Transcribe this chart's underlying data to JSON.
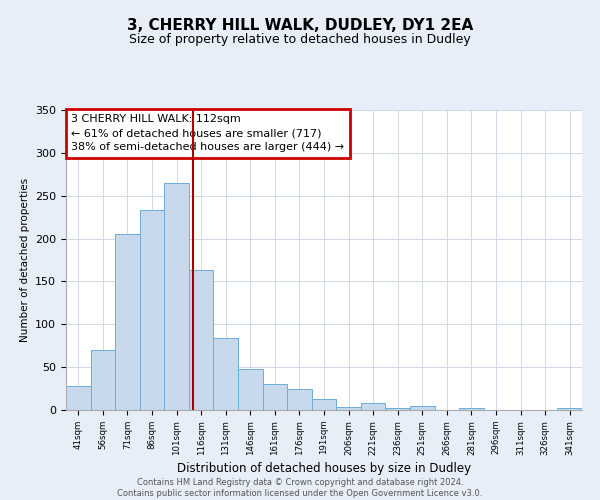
{
  "title": "3, CHERRY HILL WALK, DUDLEY, DY1 2EA",
  "subtitle": "Size of property relative to detached houses in Dudley",
  "xlabel": "Distribution of detached houses by size in Dudley",
  "ylabel": "Number of detached properties",
  "footer_line1": "Contains HM Land Registry data © Crown copyright and database right 2024.",
  "footer_line2": "Contains public sector information licensed under the Open Government Licence v3.0.",
  "bin_labels": [
    "41sqm",
    "56sqm",
    "71sqm",
    "86sqm",
    "101sqm",
    "116sqm",
    "131sqm",
    "146sqm",
    "161sqm",
    "176sqm",
    "191sqm",
    "206sqm",
    "221sqm",
    "236sqm",
    "251sqm",
    "266sqm",
    "281sqm",
    "296sqm",
    "311sqm",
    "326sqm",
    "341sqm"
  ],
  "bar_values": [
    28,
    70,
    205,
    233,
    265,
    163,
    84,
    48,
    30,
    25,
    13,
    4,
    8,
    2,
    5,
    0,
    2,
    0,
    0,
    0,
    2
  ],
  "bar_color": "#c8d9ee",
  "bar_edge_color": "#6aaed6",
  "annotation_title": "3 CHERRY HILL WALK: 112sqm",
  "annotation_line1": "← 61% of detached houses are smaller (717)",
  "annotation_line2": "38% of semi-detached houses are larger (444) →",
  "vline_bin": 4.67,
  "vline_color": "#aa0000",
  "ylim": [
    0,
    350
  ],
  "yticks": [
    0,
    50,
    100,
    150,
    200,
    250,
    300,
    350
  ],
  "bg_color": "#e8eef8",
  "plot_bg_color": "#ffffff",
  "grid_color": "#d0d8e8"
}
